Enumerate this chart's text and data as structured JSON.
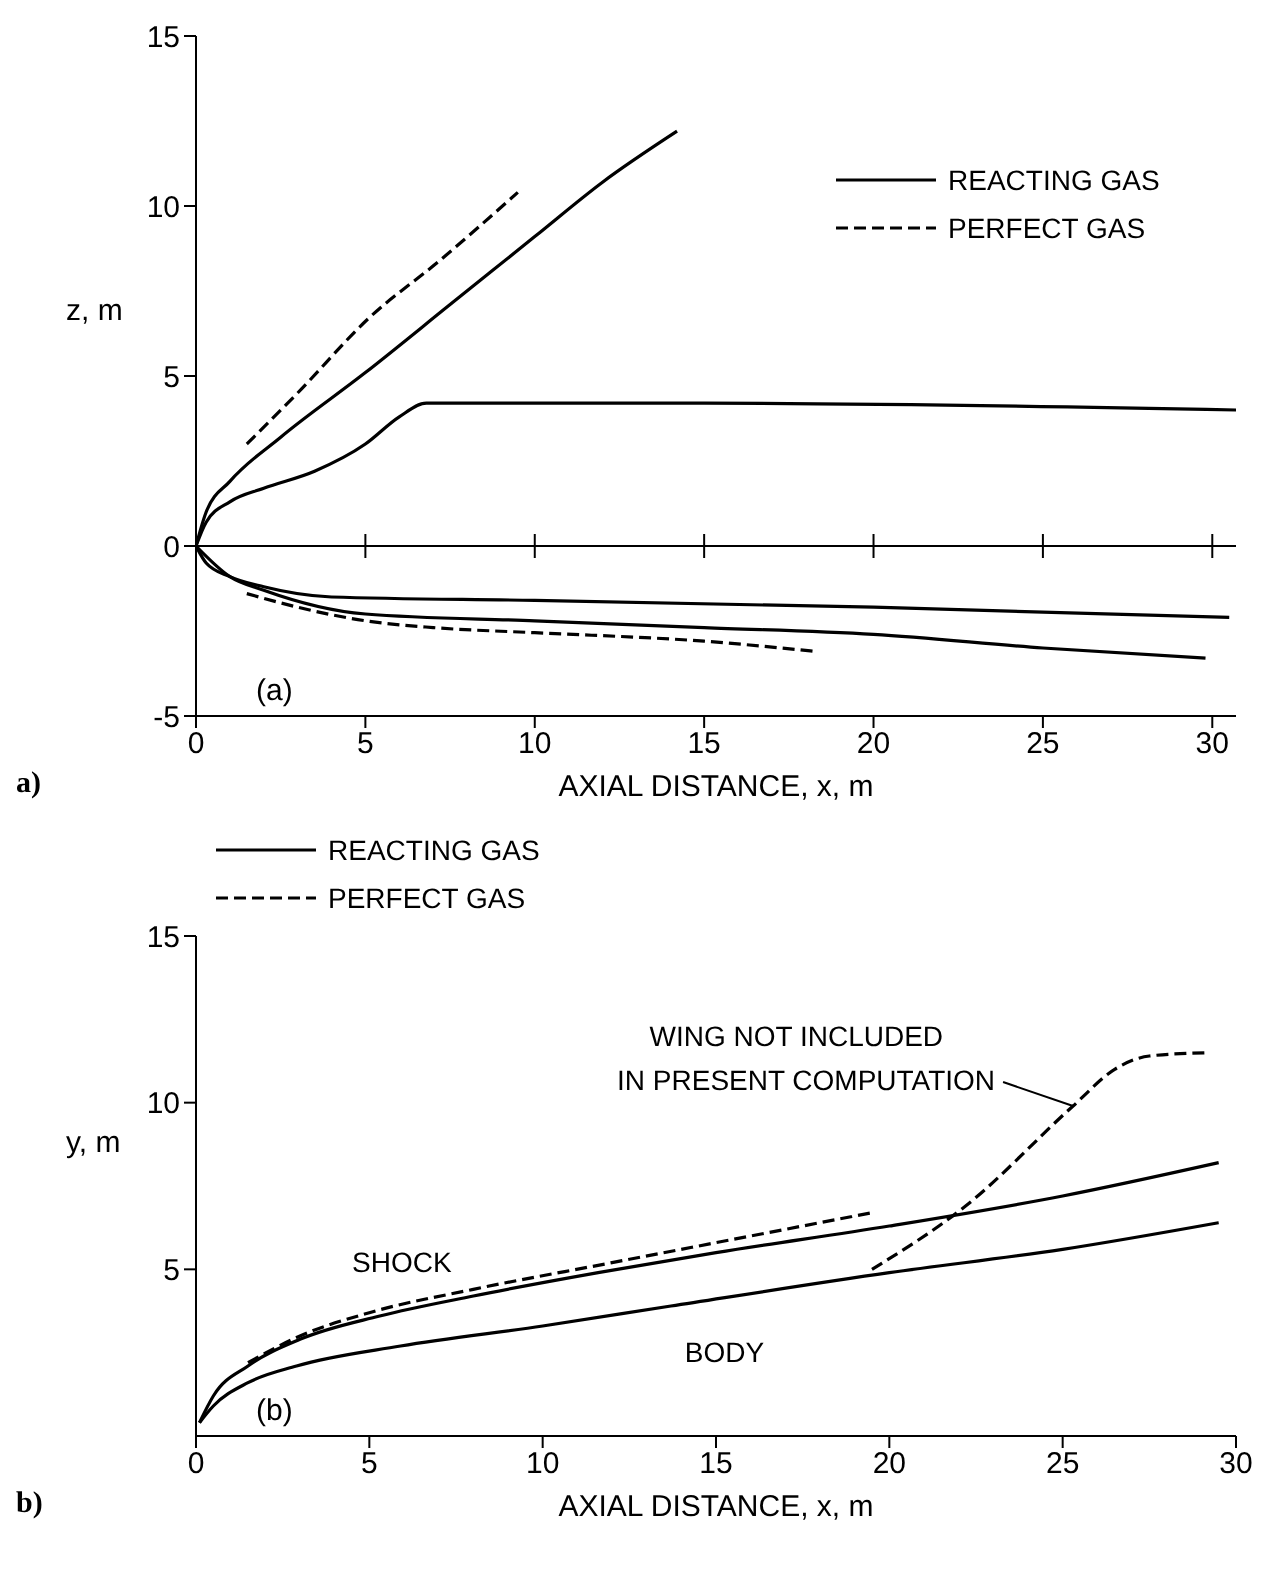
{
  "chart_data": [
    {
      "type": "line",
      "xlabel": "AXIAL DISTANCE, x, m",
      "ylabel": "z, m",
      "xlim": [
        0,
        30.7
      ],
      "ylim": [
        -5,
        15
      ],
      "xticks": [
        0,
        5,
        10,
        15,
        20,
        25,
        30
      ],
      "yticks": [
        -5,
        0,
        5,
        10,
        15
      ],
      "grid": false,
      "legend": "top right",
      "annotations": [
        "(a)",
        "a)"
      ],
      "ref_lines": [
        {
          "axis": "y",
          "value": 0,
          "color": "#000000"
        }
      ],
      "series": [
        {
          "name": "REACTING GAS",
          "color": "#000000",
          "line_style": "solid",
          "x": [
            0,
            0.3,
            1,
            2.5,
            5,
            7.5,
            10,
            12,
            14.2
          ],
          "values": [
            0,
            1,
            1.9,
            3.2,
            5.1,
            7.1,
            9.1,
            10.7,
            12.2
          ]
        },
        {
          "name": "PERFECT GAS",
          "color": "#000000",
          "line_style": "dashed",
          "x": [
            1.5,
            3,
            5.1,
            7.2,
            9.5
          ],
          "values": [
            3.0,
            4.5,
            6.7,
            8.4,
            10.4
          ]
        },
        {
          "color": "#000000",
          "line_style": "solid",
          "x": [
            0,
            0.3,
            1,
            2,
            3.5,
            5,
            6,
            6.8,
            15,
            30.7
          ],
          "values": [
            0,
            0.7,
            1.3,
            1.7,
            2.2,
            3.0,
            3.8,
            4.2,
            4.2,
            4.0
          ]
        },
        {
          "color": "#000000",
          "line_style": "solid",
          "x": [
            0,
            0.3,
            1,
            2,
            4,
            10,
            20,
            30.5
          ],
          "values": [
            0,
            -0.5,
            -0.9,
            -1.2,
            -1.5,
            -1.6,
            -1.8,
            -2.1
          ]
        },
        {
          "color": "#000000",
          "line_style": "solid",
          "x": [
            0,
            1,
            2,
            5,
            10,
            15,
            20,
            25,
            29.8
          ],
          "values": [
            0,
            -0.9,
            -1.3,
            -2.0,
            -2.2,
            -2.4,
            -2.6,
            -3.0,
            -3.3
          ]
        },
        {
          "color": "#000000",
          "line_style": "dashed",
          "x": [
            1.5,
            3,
            5,
            7,
            10,
            15,
            18.3
          ],
          "values": [
            -1.4,
            -1.8,
            -2.2,
            -2.4,
            -2.55,
            -2.8,
            -3.1
          ]
        }
      ]
    },
    {
      "type": "line",
      "xlabel": "AXIAL DISTANCE, x, m",
      "ylabel": "y, m",
      "xlim": [
        0,
        30
      ],
      "ylim": [
        0,
        15
      ],
      "xticks": [
        0,
        5,
        10,
        15,
        20,
        25,
        30
      ],
      "yticks": [
        5,
        10,
        15
      ],
      "grid": false,
      "legend": "top left",
      "annotations": [
        "(b)",
        "b)",
        "SHOCK",
        "BODY",
        {
          "text": "WING NOT INCLUDED\nIN PRESENT COMPUTATION",
          "x": 25.3,
          "y": 9.9
        }
      ],
      "series": [
        {
          "name": "REACTING GAS",
          "color": "#000000",
          "line_style": "solid",
          "x": [
            0.1,
            0.5,
            1.5,
            3,
            5.3,
            8,
            11.6,
            15,
            20,
            25,
            29.5
          ],
          "values": [
            0.4,
            1.2,
            2.1,
            2.9,
            3.6,
            4.2,
            4.9,
            5.5,
            6.3,
            7.2,
            8.2
          ]
        },
        {
          "name": "PERFECT GAS",
          "color": "#000000",
          "line_style": "dashed",
          "x": [
            1.5,
            3,
            5,
            8,
            12,
            15,
            19.5
          ],
          "values": [
            2.2,
            3.0,
            3.7,
            4.4,
            5.2,
            5.8,
            6.7
          ]
        },
        {
          "color": "#000000",
          "line_style": "solid",
          "x": [
            0.1,
            0.5,
            1.5,
            2.9,
            5.9,
            10,
            13.7,
            20,
            25,
            29.5
          ],
          "values": [
            0.4,
            0.9,
            1.6,
            2.1,
            2.7,
            3.3,
            3.9,
            4.9,
            5.6,
            6.4
          ]
        },
        {
          "color": "#000000",
          "line_style": "dashed",
          "x": [
            19.5,
            22.2,
            25.3,
            26.5,
            27.5,
            29.2
          ],
          "values": [
            5.0,
            6.9,
            9.9,
            11.0,
            11.4,
            11.5
          ]
        }
      ]
    }
  ]
}
